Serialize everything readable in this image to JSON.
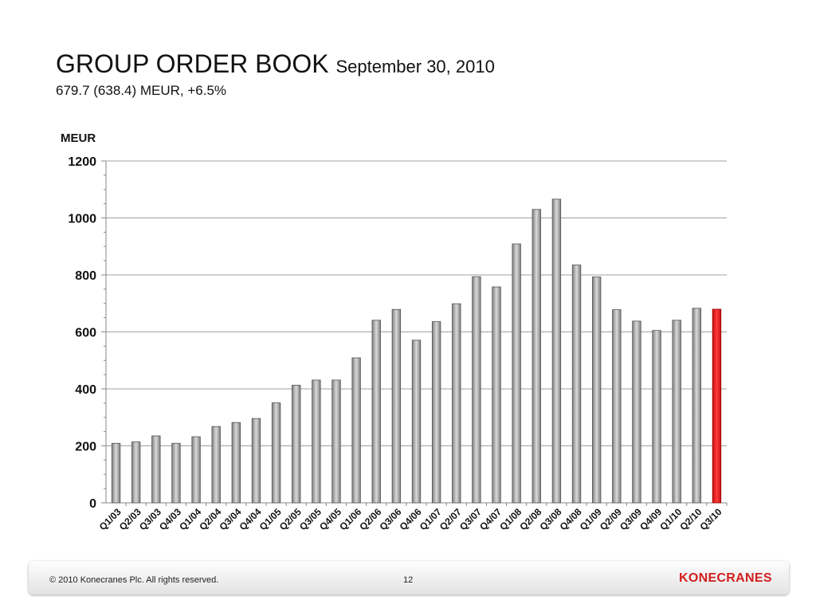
{
  "title": {
    "main": "GROUP ORDER BOOK",
    "sub": "September 30, 2010"
  },
  "subtitle": "679.7 (638.4) MEUR, +6.5%",
  "footer": {
    "copyright": "© 2010 Konecranes Plc. All rights reserved.",
    "page": "12",
    "logo": "KONECRANES"
  },
  "colors": {
    "bar": "#a6a6a6",
    "highlight": "#e81c1c",
    "logo": "#d21e1e"
  },
  "chart_data": {
    "type": "bar",
    "ylabel": "MEUR",
    "ylim": [
      0,
      1200
    ],
    "yticks": [
      0,
      200,
      400,
      600,
      800,
      1000,
      1200
    ],
    "grid": true,
    "categories": [
      "Q1/03",
      "Q2/03",
      "Q3/03",
      "Q4/03",
      "Q1/04",
      "Q2/04",
      "Q3/04",
      "Q4/04",
      "Q1/05",
      "Q2/05",
      "Q3/05",
      "Q4/05",
      "Q1/06",
      "Q2/06",
      "Q3/06",
      "Q4/06",
      "Q1/07",
      "Q2/07",
      "Q3/07",
      "Q4/07",
      "Q1/08",
      "Q2/08",
      "Q3/08",
      "Q4/08",
      "Q1/09",
      "Q2/09",
      "Q3/09",
      "Q4/09",
      "Q1/10",
      "Q2/10",
      "Q3/10"
    ],
    "values": [
      209,
      214,
      235,
      209,
      232,
      268,
      282,
      296,
      351,
      413,
      431,
      431,
      509,
      641,
      679,
      571,
      636,
      699,
      794,
      758,
      909,
      1030,
      1066,
      835,
      793,
      678,
      638,
      605,
      641,
      683,
      679.7
    ],
    "highlight_index": 30
  }
}
